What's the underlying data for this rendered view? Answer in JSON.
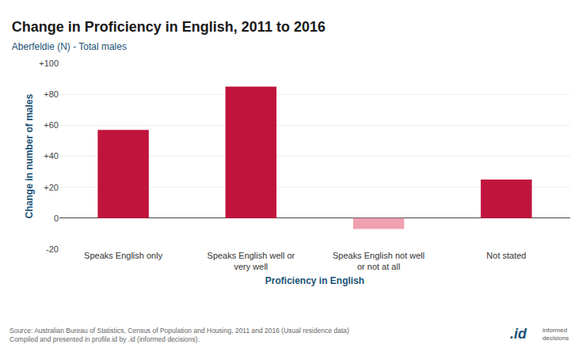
{
  "chart_data": {
    "type": "bar",
    "title": "Change in Proficiency in English, 2011 to 2016",
    "subtitle": "Aberfeldie (N) - Total males",
    "categories": [
      "Speaks English only",
      "Speaks English well or\nvery well",
      "Speaks English not well\nor not at all",
      "Not stated"
    ],
    "values": [
      57,
      85,
      -7,
      25
    ],
    "colors": [
      "#c0143c",
      "#c0143c",
      "#f0a0b0",
      "#c0143c"
    ],
    "xlabel": "Proficiency in English",
    "ylabel": "Change in number of males",
    "ylim": [
      -20,
      100
    ],
    "yticks": [
      -20,
      0,
      {
        "value": 20,
        "label": "+20"
      },
      {
        "value": 40,
        "label": "+40"
      },
      {
        "value": 60,
        "label": "+60"
      },
      {
        "value": 80,
        "label": "+80"
      },
      {
        "value": 100,
        "label": "+100"
      }
    ],
    "grid": true,
    "annotations": [
      "Source: Australian Bureau of Statistics, Census of Population and Housing, 2011 and 2016 (Usual residence data)\nCompiled and presented in profile.id by .id (informed decisions).",
      ".id",
      "informed",
      "decisions"
    ]
  }
}
